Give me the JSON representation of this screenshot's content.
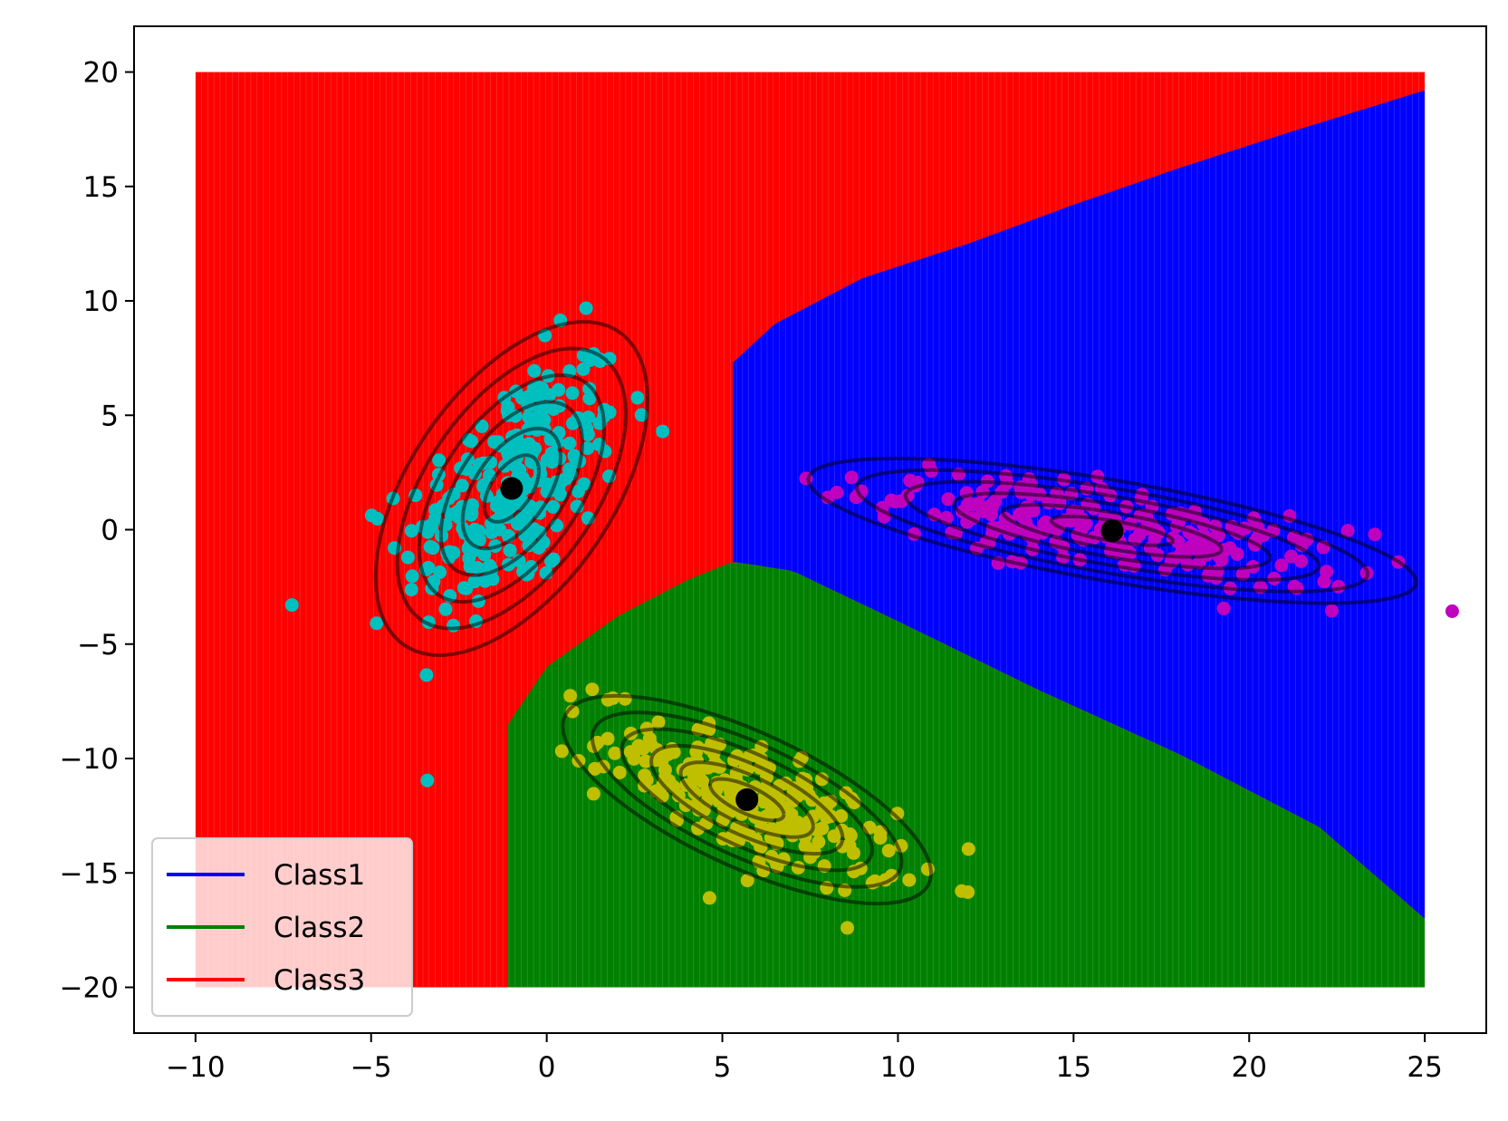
{
  "chart_data": {
    "type": "scatter",
    "title": "",
    "xlabel": "",
    "ylabel": "",
    "xlim": [
      -11.75,
      26.75
    ],
    "ylim": [
      -22,
      22
    ],
    "xticks": [
      -10,
      -5,
      0,
      5,
      10,
      15,
      20,
      25
    ],
    "yticks": [
      -20,
      -15,
      -10,
      -5,
      0,
      5,
      10,
      15,
      20
    ],
    "xtick_labels": [
      "−10",
      "−5",
      "0",
      "5",
      "10",
      "15",
      "20",
      "25"
    ],
    "ytick_labels": [
      "−20",
      "−15",
      "−10",
      "−5",
      "0",
      "5",
      "10",
      "15",
      "20"
    ],
    "grid": false,
    "legend_position": "lower-left",
    "decision_regions": {
      "domain_x": [
        -10,
        25
      ],
      "domain_y": [
        -20,
        20
      ],
      "series": [
        {
          "name": "Class1",
          "color": "#0000ff"
        },
        {
          "name": "Class2",
          "color": "#008000"
        },
        {
          "name": "Class3",
          "color": "#ff0000"
        }
      ],
      "boundaries": {
        "class3_class1_top": [
          [
            5.3,
            7.3
          ],
          [
            6.5,
            9.0
          ],
          [
            9.0,
            11.0
          ],
          [
            12.0,
            12.5
          ],
          [
            15.0,
            14.2
          ],
          [
            18.0,
            15.8
          ],
          [
            21.0,
            17.3
          ],
          [
            25.0,
            19.2
          ]
        ],
        "class3_lower_vertical_x": -1.1,
        "class3_upper_vertical_x": 5.3,
        "class2_top": [
          [
            -1.1,
            -8.5
          ],
          [
            0.0,
            -6.0
          ],
          [
            2.0,
            -3.8
          ],
          [
            4.0,
            -2.2
          ],
          [
            5.3,
            -1.4
          ],
          [
            7.0,
            -1.8
          ],
          [
            10.0,
            -4.0
          ],
          [
            14.0,
            -7.0
          ],
          [
            18.0,
            -9.8
          ],
          [
            22.0,
            -13.0
          ],
          [
            25.0,
            -17.0
          ]
        ]
      }
    },
    "clusters": [
      {
        "name": "cyan",
        "color": "#00bfbf",
        "mean": [
          -1.0,
          1.8
        ],
        "cov": [
          [
            2.4,
            2.4
          ],
          [
            2.4,
            8.5
          ]
        ],
        "n": 260
      },
      {
        "name": "magenta",
        "color": "#bf00bf",
        "mean": [
          16.1,
          -0.05
        ],
        "cov": [
          [
            12.0,
            -3.1
          ],
          [
            -3.1,
            1.6
          ]
        ],
        "n": 240
      },
      {
        "name": "yellow",
        "color": "#bfbf00",
        "mean": [
          5.7,
          -11.8
        ],
        "cov": [
          [
            4.4,
            -2.7
          ],
          [
            -2.7,
            3.3
          ]
        ],
        "n": 240
      }
    ],
    "means": [
      [
        -1.0,
        1.8
      ],
      [
        16.1,
        -0.05
      ],
      [
        5.7,
        -11.8
      ]
    ],
    "contour_levels_sigma": [
      0.5,
      0.9,
      1.3,
      1.7,
      2.1,
      2.5
    ]
  }
}
